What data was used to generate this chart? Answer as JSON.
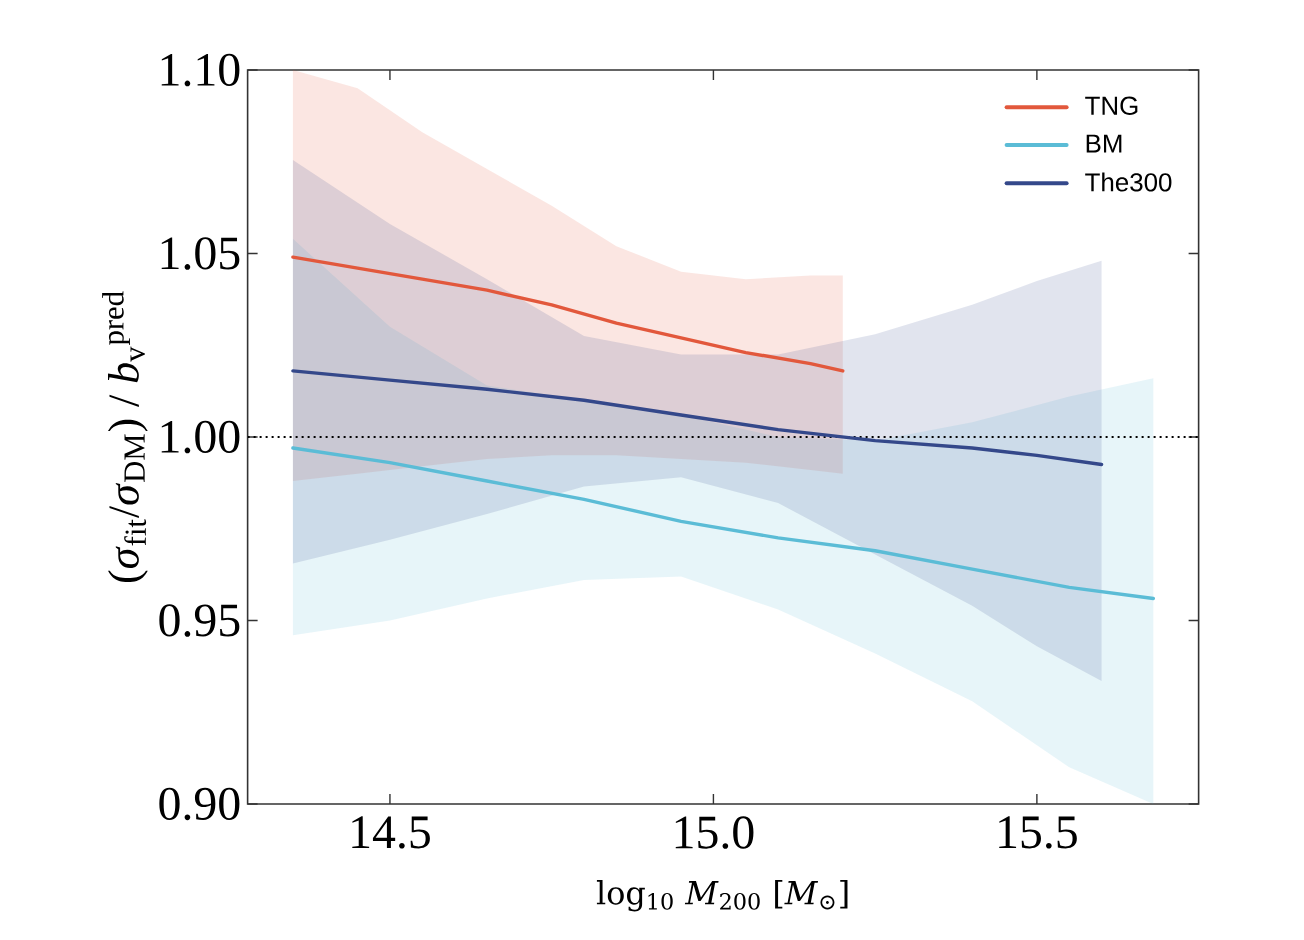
{
  "chart_data": {
    "type": "line",
    "xlabel": "log$_{10}$ *M*$_{200}$ [*M*$_{⊙}$]",
    "ylabel": "(*σ*$_{fit}$/*σ*$_{DM}$) / *b*$_{v}$$^{pred}$",
    "xlim": [
      14.28,
      15.75
    ],
    "ylim": [
      0.9,
      1.1
    ],
    "xticks": [
      14.5,
      {
        "value": 15.0,
        "label": "15.0"
      },
      15.5
    ],
    "yticks": [
      {
        "value": 0.9,
        "label": "0.90"
      },
      0.95,
      {
        "value": 1.0,
        "label": "1.00"
      },
      1.05,
      {
        "value": 1.1,
        "label": "1.10"
      }
    ],
    "legend": "top right",
    "line_style": "solid",
    "ref_lines": [
      {
        "axis": "y",
        "value": 1.0,
        "color": "#000000",
        "line_style": "dotted"
      }
    ],
    "series": [
      {
        "name": "TNG",
        "color": "#e2583c",
        "x": [
          14.35,
          14.45,
          14.55,
          14.65,
          14.75,
          14.85,
          14.95,
          15.05,
          15.15,
          15.2
        ],
        "values": [
          1.049,
          1.046,
          1.043,
          1.04,
          1.036,
          1.031,
          1.027,
          1.023,
          1.02,
          1.018
        ],
        "upper": [
          1.1,
          1.095,
          1.083,
          1.073,
          1.063,
          1.052,
          1.045,
          1.043,
          1.044,
          1.044
        ],
        "lower": [
          0.988,
          0.99,
          0.992,
          0.994,
          0.995,
          0.995,
          0.994,
          0.993,
          0.991,
          0.99
        ]
      },
      {
        "name": "BM",
        "color": "#5bbcd6",
        "x": [
          14.35,
          14.5,
          14.65,
          14.8,
          14.95,
          15.1,
          15.25,
          15.4,
          15.55,
          15.68
        ],
        "values": [
          0.997,
          0.993,
          0.988,
          0.983,
          0.977,
          0.9725,
          0.969,
          0.964,
          0.959,
          0.956
        ],
        "upper": [
          1.054,
          1.03,
          1.014,
          1.01,
          1.006,
          1.0,
          0.999,
          1.004,
          1.011,
          1.016
        ],
        "lower": [
          0.946,
          0.95,
          0.956,
          0.961,
          0.962,
          0.953,
          0.941,
          0.928,
          0.91,
          0.9
        ]
      },
      {
        "name": "The300",
        "color": "#34488a",
        "x": [
          14.35,
          14.5,
          14.65,
          14.8,
          14.95,
          15.1,
          15.25,
          15.4,
          15.5,
          15.6
        ],
        "values": [
          1.018,
          1.0155,
          1.013,
          1.01,
          1.006,
          1.002,
          0.999,
          0.997,
          0.995,
          0.9925
        ],
        "upper": [
          1.0755,
          1.058,
          1.043,
          1.0275,
          1.0225,
          1.0225,
          1.028,
          1.036,
          1.0425,
          1.048
        ],
        "lower": [
          0.9655,
          0.972,
          0.979,
          0.9865,
          0.989,
          0.982,
          0.968,
          0.954,
          0.943,
          0.9335
        ]
      }
    ]
  }
}
